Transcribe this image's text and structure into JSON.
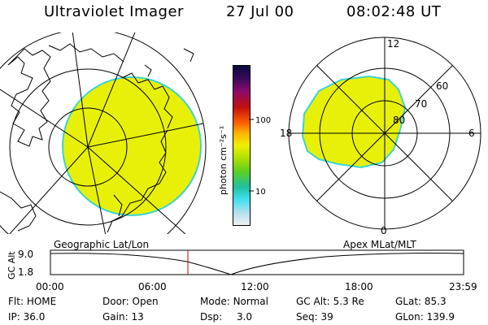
{
  "header": {
    "title": "Ultraviolet Imager",
    "date": "27 Jul 00",
    "time": "08:02:48 UT"
  },
  "colorbar": {
    "label": "photon cm⁻²s⁻¹",
    "ticks": [
      "100",
      "10"
    ]
  },
  "polar": {
    "mlt_labels": [
      "12",
      "18",
      "6",
      "0"
    ],
    "lat_labels": [
      "60",
      "70",
      "80"
    ]
  },
  "plot": {
    "left_label": "Geographic Lat/Lon",
    "right_label": "Apex MLat/MLT",
    "y_axis_label": "GC Alt",
    "y_ticks": [
      "9.0",
      "1.8"
    ],
    "x_ticks": [
      "00:00",
      "06:00",
      "12:00",
      "18:00",
      "23:59"
    ]
  },
  "status": {
    "flt": {
      "label": "Flt:",
      "value": "HOME"
    },
    "ip": {
      "label": "IP:",
      "value": "36.0"
    },
    "door": {
      "label": "Door:",
      "value": "Open"
    },
    "gain": {
      "label": "Gain:",
      "value": "13"
    },
    "mode": {
      "label": "Mode:",
      "value": "Normal"
    },
    "dsp": {
      "label": "Dsp:",
      "value": "3.0"
    },
    "gcalt": {
      "label": "GC Alt:",
      "value": "5.3 Re"
    },
    "seq": {
      "label": "Seq:",
      "value": "39"
    },
    "glat": {
      "label": "GLat:",
      "value": "85.3"
    },
    "glon": {
      "label": "GLon:",
      "value": "139.9"
    }
  },
  "colors": {
    "aurora_fill": "#e8f00a",
    "aurora_edge": "#3cd4d0"
  }
}
